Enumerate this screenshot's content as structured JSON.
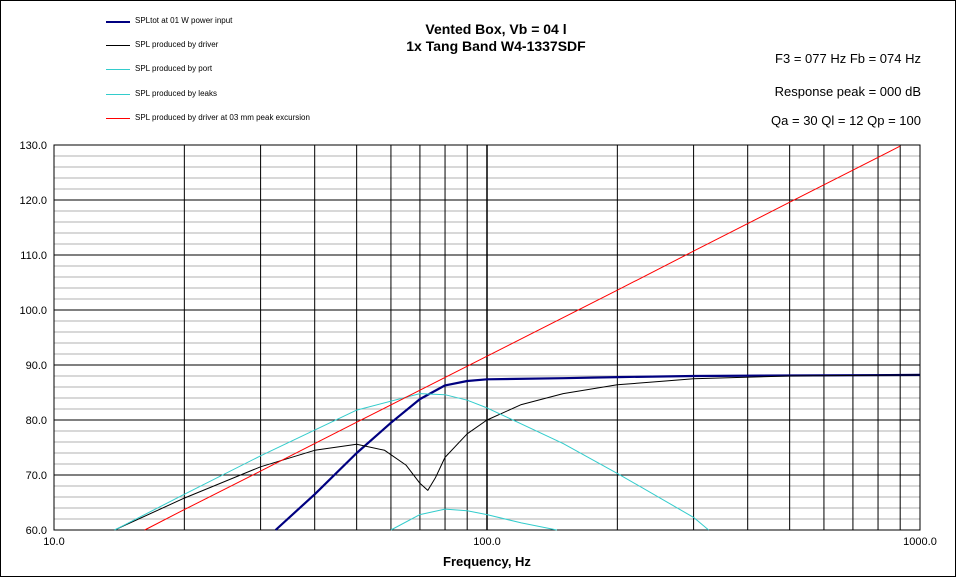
{
  "chart": {
    "title_line1": "Vented Box, Vb = 04 l",
    "title_line2": "1x Tang Band W4-1337SDF",
    "stats": {
      "f3_fb": "F3 = 077  Hz  Fb = 074  Hz",
      "response_peak": "Response  peak = 000  dB",
      "q_values": "Qa = 30  Ql = 12  Qp = 100"
    },
    "legend": [
      {
        "label": "SPLtot at 01 W power input",
        "color": "#000080"
      },
      {
        "label": "SPL produced by driver",
        "color": "#000000"
      },
      {
        "label": "SPL produced by port",
        "color": "#33cccc"
      },
      {
        "label": "SPL produced by leaks",
        "color": "#33cccc"
      },
      {
        "label": "SPL produced by driver at 03 mm peak excursion",
        "color": "#ff0000"
      }
    ]
  },
  "chart_data": {
    "type": "line",
    "xlabel": "Frequency, Hz",
    "ylabel": "",
    "x_scale": "log",
    "xlim": [
      10,
      1000
    ],
    "ylim": [
      60,
      130
    ],
    "x_ticks": [
      "10.0",
      "100.0",
      "1000.0"
    ],
    "y_ticks": [
      "60.0",
      "70.0",
      "80.0",
      "90.0",
      "100.0",
      "110.0",
      "120.0",
      "130.0"
    ],
    "grid": true,
    "legend_position": "top-left",
    "series": [
      {
        "name": "SPLtot at 01 W power input",
        "color": "#000080",
        "width": 2.2,
        "x": [
          32.5,
          40,
          50,
          60,
          70,
          80,
          90,
          100,
          150,
          200,
          300,
          500,
          1000
        ],
        "y": [
          60,
          66.5,
          74,
          79.5,
          83.8,
          86.3,
          87.1,
          87.4,
          87.6,
          87.8,
          88.0,
          88.1,
          88.2
        ]
      },
      {
        "name": "SPL produced by driver",
        "color": "#000000",
        "width": 1,
        "x": [
          13.8,
          20,
          30,
          40,
          50,
          58,
          65,
          70,
          73,
          76,
          80,
          90,
          100,
          120,
          150,
          200,
          300,
          500,
          1000
        ],
        "y": [
          60,
          65.8,
          71.5,
          74.5,
          75.6,
          74.5,
          71.8,
          68.5,
          67.2,
          69.5,
          73.2,
          77.5,
          80.0,
          82.8,
          84.8,
          86.4,
          87.5,
          88.0,
          88.2
        ]
      },
      {
        "name": "SPL produced by port",
        "color": "#33cccc",
        "width": 1,
        "x": [
          13.8,
          20,
          30,
          50,
          70,
          80,
          90,
          100,
          150,
          200,
          300,
          325
        ],
        "y": [
          60,
          66.5,
          73.5,
          81.8,
          84.8,
          84.6,
          83.6,
          82.2,
          75.7,
          70.3,
          62.3,
          60
        ]
      },
      {
        "name": "SPL produced by leaks",
        "color": "#33cccc",
        "width": 1,
        "x": [
          60,
          70,
          80,
          90,
          100,
          120,
          145
        ],
        "y": [
          60,
          62.8,
          63.8,
          63.5,
          62.8,
          61.3,
          60
        ]
      },
      {
        "name": "SPL produced by driver at 03 mm peak excursion",
        "color": "#ff0000",
        "width": 1,
        "x": [
          16.2,
          20,
          30,
          50,
          100,
          200,
          300,
          500,
          900
        ],
        "y": [
          60,
          63.7,
          70.7,
          79.6,
          91.6,
          103.6,
          110.7,
          119.6,
          129.8
        ]
      }
    ]
  }
}
